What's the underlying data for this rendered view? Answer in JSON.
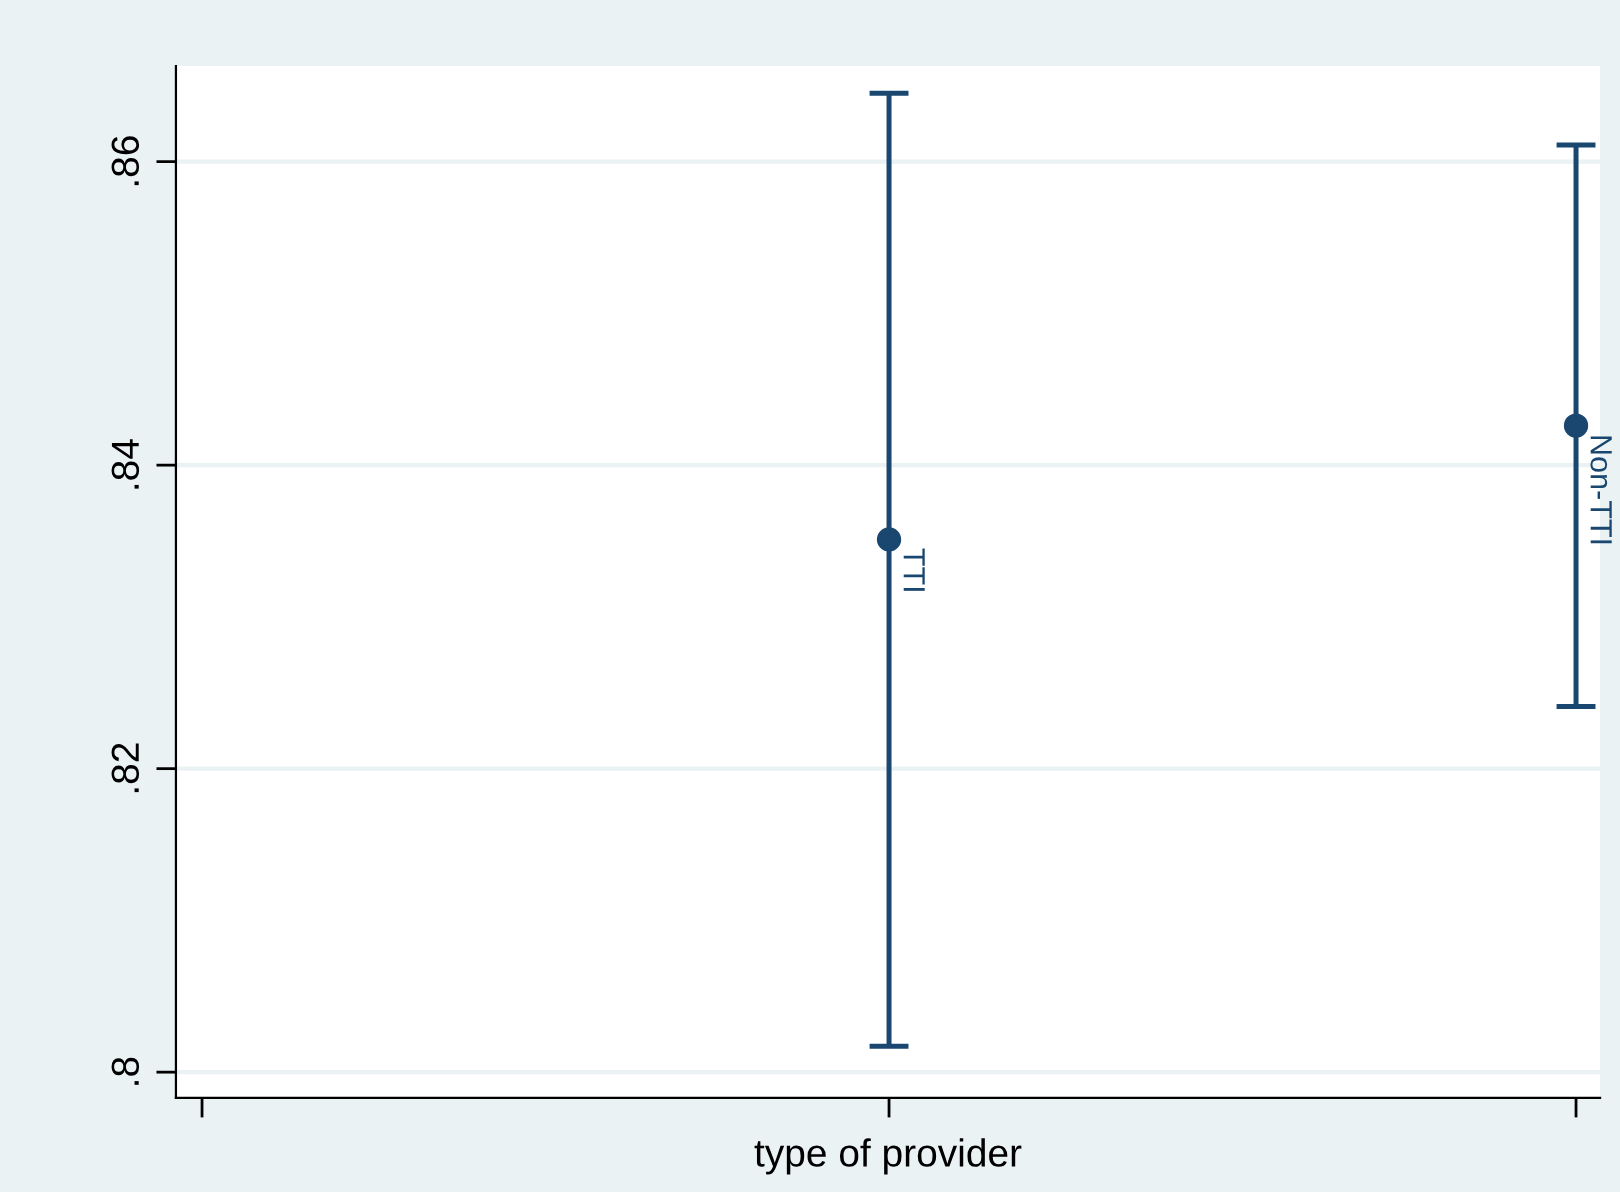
{
  "chart_data": {
    "type": "scatter",
    "xlabel": "type of provider",
    "categories": [
      null,
      null,
      null
    ],
    "series": [
      {
        "name": "TTI",
        "color": "#1a476f",
        "values": [
          null,
          0.8351,
          null
        ],
        "errors": [
          null,
          [
            0.8017,
            0.8645
          ],
          null
        ]
      },
      {
        "name": "Non-TTI",
        "color": "#1a476f",
        "values": [
          null,
          null,
          0.8426
        ],
        "errors": [
          null,
          null,
          [
            0.8241,
            0.8611
          ]
        ]
      }
    ],
    "ylim": [
      0.7983,
      0.8663
    ],
    "yticks": [
      {
        "value": 0.8,
        "label": ".8"
      },
      {
        "value": 0.82,
        "label": ".82"
      },
      {
        "value": 0.84,
        "label": ".84"
      },
      {
        "value": 0.86,
        "label": ".86"
      }
    ],
    "tick_labels": "y",
    "grid": "y",
    "marker": "circle"
  }
}
